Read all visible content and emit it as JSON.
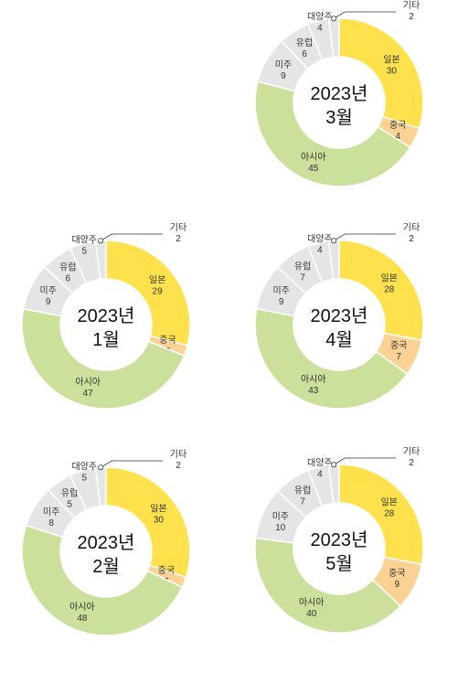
{
  "colors": {
    "일본": "#FFE14D",
    "중국": "#FBD194",
    "아시아": "#CBE09A",
    "미주": "#E5E5E5",
    "유럽": "#E5E5E5",
    "대양주": "#E5E5E5",
    "기타": "#E5E5E5",
    "separator": "#ffffff",
    "leader": "#333333",
    "text": "#333333"
  },
  "chart_data": [
    {
      "type": "pie",
      "center_label_year": "2023년",
      "center_label_month": "1월",
      "categories": [
        "일본",
        "중국",
        "아시아",
        "미주",
        "유럽",
        "대양주",
        "기타"
      ],
      "values": [
        29,
        2,
        47,
        9,
        6,
        5,
        2
      ]
    },
    {
      "type": "pie",
      "center_label_year": "2023년",
      "center_label_month": "2월",
      "categories": [
        "일본",
        "중국",
        "아시아",
        "미주",
        "유럽",
        "대양주",
        "기타"
      ],
      "values": [
        30,
        2,
        48,
        8,
        5,
        5,
        2
      ]
    },
    {
      "type": "pie",
      "center_label_year": "2023년",
      "center_label_month": "3월",
      "categories": [
        "일본",
        "중국",
        "아시아",
        "미주",
        "유럽",
        "대양주",
        "기타"
      ],
      "values": [
        30,
        4,
        45,
        9,
        6,
        4,
        2
      ]
    },
    {
      "type": "pie",
      "center_label_year": "2023년",
      "center_label_month": "4월",
      "categories": [
        "일본",
        "중국",
        "아시아",
        "미주",
        "유럽",
        "대양주",
        "기타"
      ],
      "values": [
        28,
        7,
        43,
        9,
        7,
        4,
        2
      ]
    },
    {
      "type": "pie",
      "center_label_year": "2023년",
      "center_label_month": "5월",
      "categories": [
        "일본",
        "중국",
        "아시아",
        "미주",
        "유럽",
        "대양주",
        "기타"
      ],
      "values": [
        28,
        9,
        40,
        10,
        7,
        4,
        2
      ]
    }
  ]
}
